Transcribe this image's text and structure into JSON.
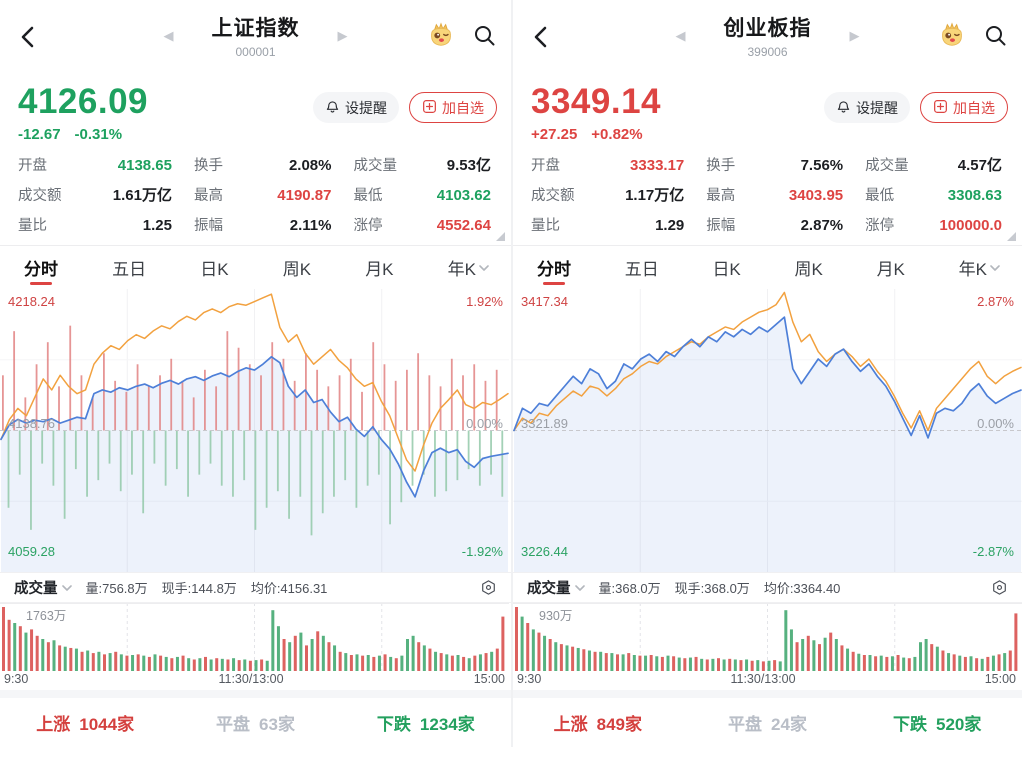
{
  "colors": {
    "red": "#dd4442",
    "green": "#1ea15f",
    "orange": "#f2a13f",
    "blue_line": "#4d7fd8",
    "blue_fill": "rgba(77,127,216,0.10)",
    "vol_red": "#d9514f",
    "vol_green": "#44a871",
    "accent_underline": "#dd4442"
  },
  "panels": [
    {
      "nav": {
        "title": "上证指数",
        "code": "000001"
      },
      "price": {
        "value": "4126.09",
        "change": "-12.67",
        "pct": "-0.31%",
        "cls": "c-green"
      },
      "actions": {
        "alert": "设提醒",
        "add": "加自选"
      },
      "stats": [
        {
          "label": "开盘",
          "value": "4138.65",
          "cls": "c-green"
        },
        {
          "label": "换手",
          "value": "2.08%",
          "cls": "c-dark"
        },
        {
          "label": "成交量",
          "value": "9.53亿",
          "cls": "c-dark"
        },
        {
          "label": "成交额",
          "value": "1.61万亿",
          "cls": "c-dark"
        },
        {
          "label": "最高",
          "value": "4190.87",
          "cls": "c-red"
        },
        {
          "label": "最低",
          "value": "4103.62",
          "cls": "c-green"
        },
        {
          "label": "量比",
          "value": "1.25",
          "cls": "c-dark"
        },
        {
          "label": "振幅",
          "value": "2.11%",
          "cls": "c-dark"
        },
        {
          "label": "涨停",
          "value": "4552.64",
          "cls": "c-red"
        }
      ],
      "tabs": [
        "分时",
        "五日",
        "日K",
        "周K",
        "月K",
        "年K"
      ],
      "chart_labels": {
        "top_left": "4218.24",
        "top_right": "1.92%",
        "mid_left": "4138.76",
        "mid_right": "0.00%",
        "bottom_left": "4059.28",
        "bottom_right": "-1.92%"
      },
      "vol_info": {
        "selector": "成交量",
        "items": [
          "量:756.8万",
          "现手:144.8万",
          "均价:4156.31"
        ]
      },
      "vol_max": "1763万",
      "axis": [
        "9:30",
        "11:30/13:00",
        "15:00"
      ],
      "footer": {
        "up_label": "上涨",
        "up": "1044家",
        "flat_label": "平盘",
        "flat": "63家",
        "down_label": "下跌",
        "down": "1234家"
      }
    },
    {
      "nav": {
        "title": "创业板指",
        "code": "399006"
      },
      "price": {
        "value": "3349.14",
        "change": "+27.25",
        "pct": "+0.82%",
        "cls": "c-red"
      },
      "actions": {
        "alert": "设提醒",
        "add": "加自选"
      },
      "stats": [
        {
          "label": "开盘",
          "value": "3333.17",
          "cls": "c-red"
        },
        {
          "label": "换手",
          "value": "7.56%",
          "cls": "c-dark"
        },
        {
          "label": "成交量",
          "value": "4.57亿",
          "cls": "c-dark"
        },
        {
          "label": "成交额",
          "value": "1.17万亿",
          "cls": "c-dark"
        },
        {
          "label": "最高",
          "value": "3403.95",
          "cls": "c-red"
        },
        {
          "label": "最低",
          "value": "3308.63",
          "cls": "c-green"
        },
        {
          "label": "量比",
          "value": "1.29",
          "cls": "c-dark"
        },
        {
          "label": "振幅",
          "value": "2.87%",
          "cls": "c-dark"
        },
        {
          "label": "涨停",
          "value": "100000.0",
          "cls": "c-red"
        }
      ],
      "tabs": [
        "分时",
        "五日",
        "日K",
        "周K",
        "月K",
        "年K"
      ],
      "chart_labels": {
        "top_left": "3417.34",
        "top_right": "2.87%",
        "mid_left": "3321.89",
        "mid_right": "0.00%",
        "bottom_left": "3226.44",
        "bottom_right": "-2.87%"
      },
      "vol_info": {
        "selector": "成交量",
        "items": [
          "量:368.0万",
          "现手:368.0万",
          "均价:3364.40"
        ]
      },
      "vol_max": "930万",
      "axis": [
        "9:30",
        "11:30/13:00",
        "15:00"
      ],
      "footer": {
        "up_label": "上涨",
        "up": "849家",
        "flat_label": "平盘",
        "flat": "24家",
        "down_label": "下跌",
        "down": "520家"
      }
    }
  ],
  "chart_data": [
    {
      "type": "line",
      "title": "上证指数 分时",
      "x_axis": [
        "9:30",
        "11:30/13:00",
        "15:00"
      ],
      "ylim_pct": [
        -1.92,
        1.92
      ],
      "mid_value": 4138.76,
      "series": [
        {
          "name": "price_pct",
          "color": "#4d7fd8",
          "values": [
            -0.12,
            0.08,
            0.15,
            0.1,
            0.14,
            0.12,
            0.16,
            0.1,
            0.14,
            0.18,
            0.16,
            0.5,
            0.55,
            0.52,
            0.58,
            0.55,
            0.6,
            0.63,
            0.58,
            0.64,
            0.68,
            0.63,
            0.7,
            0.73,
            0.68,
            0.74,
            0.78,
            0.73,
            0.8,
            0.85,
            0.82,
            0.9,
            1.0,
            0.92,
            0.6,
            0.45,
            0.55,
            0.38,
            0.42,
            0.25,
            0.12,
            0.18,
            0.02,
            -0.08,
            0.05,
            -0.12,
            -0.25,
            -0.45,
            -0.7,
            -0.9,
            -0.55,
            -0.3,
            -0.24,
            -0.3,
            -0.26,
            -0.42,
            -0.5,
            -0.38,
            -0.35,
            -0.33,
            -0.31
          ]
        },
        {
          "name": "average_pct",
          "color": "#f2a13f",
          "values": [
            -0.12,
            0.15,
            0.3,
            0.2,
            0.45,
            0.7,
            0.55,
            0.75,
            0.6,
            0.5,
            0.55,
            0.9,
            1.05,
            1.15,
            1.1,
            1.22,
            1.3,
            1.25,
            1.35,
            1.42,
            1.38,
            1.48,
            1.55,
            1.5,
            1.6,
            1.65,
            1.6,
            1.68,
            1.72,
            1.7,
            1.75,
            1.8,
            1.85,
            1.4,
            1.2,
            1.3,
            1.05,
            0.9,
            1.0,
            1.1,
            0.95,
            0.85,
            0.7,
            0.6,
            0.65,
            0.4,
            0.2,
            -0.1,
            -0.4,
            -0.55,
            -0.2,
            0.1,
            0.3,
            0.42,
            0.55,
            0.35,
            0.3,
            0.38,
            0.35,
            0.42,
            0.5
          ]
        }
      ],
      "minute_bars": [
        0.5,
        -0.7,
        0.9,
        -0.4,
        0.3,
        -0.9,
        0.6,
        -0.3,
        0.8,
        -0.5,
        0.4,
        -0.8,
        0.95,
        -0.35,
        0.5,
        -0.6,
        0.3,
        -0.45,
        0.7,
        -0.3,
        0.45,
        -0.55,
        0.35,
        -0.4,
        0.6,
        -0.75,
        0.4,
        -0.3,
        0.5,
        -0.5,
        0.65,
        -0.35,
        0.45,
        -0.6,
        0.3,
        -0.4,
        0.55,
        -0.3,
        0.4,
        -0.5,
        0.9,
        -0.6,
        0.75,
        -0.45,
        0.6,
        -0.9,
        0.5,
        -0.7,
        0.8,
        -0.55,
        0.65,
        -0.8,
        0.45,
        -0.6,
        0.7,
        -0.95,
        0.55,
        -0.75,
        0.4,
        -0.6,
        0.5,
        -0.45,
        0.65,
        -0.7,
        0.35,
        -0.5,
        0.8,
        -0.4,
        0.6,
        -0.85,
        0.45,
        -0.65,
        0.55,
        -0.5,
        0.7,
        -0.4,
        0.5,
        -0.6,
        0.4,
        -0.55,
        0.65,
        -0.45,
        0.5,
        -0.35,
        0.6,
        -0.5,
        0.45,
        -0.4,
        0.55,
        -0.6
      ],
      "volume": {
        "max_label": "1763万",
        "bars": [
          1.0,
          0.8,
          -0.75,
          0.7,
          -0.6,
          0.65,
          0.55,
          -0.5,
          0.45,
          -0.48,
          0.4,
          -0.38,
          0.36,
          -0.35,
          0.3,
          -0.32,
          0.28,
          -0.3,
          0.26,
          -0.28,
          0.3,
          -0.26,
          0.24,
          -0.25,
          0.26,
          -0.24,
          0.22,
          -0.26,
          0.24,
          -0.22,
          0.2,
          -0.22,
          0.24,
          -0.2,
          0.18,
          -0.2,
          0.22,
          -0.18,
          0.2,
          -0.19,
          0.18,
          -0.2,
          0.17,
          -0.18,
          0.16,
          -0.17,
          0.18,
          -0.16,
          -0.95,
          -0.7,
          0.5,
          -0.45,
          0.55,
          -0.6,
          0.4,
          -0.5,
          0.62,
          -0.55,
          0.45,
          -0.4,
          0.3,
          -0.28,
          0.25,
          -0.26,
          0.24,
          -0.25,
          0.22,
          -0.24,
          0.26,
          -0.22,
          0.2,
          -0.24,
          -0.5,
          -0.55,
          0.45,
          -0.4,
          0.35,
          -0.3,
          0.28,
          -0.26,
          0.24,
          -0.25,
          0.22,
          -0.2,
          0.24,
          -0.26,
          0.28,
          -0.3,
          0.35,
          0.85
        ]
      }
    },
    {
      "type": "line",
      "title": "创业板指 分时",
      "x_axis": [
        "9:30",
        "11:30/13:00",
        "15:00"
      ],
      "ylim_pct": [
        -2.87,
        2.87
      ],
      "mid_value": 3321.89,
      "series": [
        {
          "name": "price_pct",
          "color": "#4d7fd8",
          "values": [
            0.0,
            0.45,
            0.35,
            0.55,
            0.5,
            0.7,
            0.9,
            1.1,
            0.95,
            1.25,
            1.15,
            0.85,
            1.0,
            1.35,
            1.25,
            1.45,
            1.55,
            1.4,
            1.6,
            1.5,
            1.7,
            1.85,
            1.7,
            1.9,
            1.8,
            2.0,
            1.9,
            2.05,
            1.95,
            2.1,
            2.0,
            2.15,
            2.3,
            1.25,
            0.95,
            1.2,
            1.45,
            1.3,
            1.55,
            1.65,
            1.4,
            1.2,
            1.35,
            1.1,
            0.9,
            0.6,
            0.25,
            -0.1,
            0.3,
            -0.15,
            0.35,
            0.45,
            0.4,
            0.55,
            0.8,
            0.95,
            0.7,
            0.55,
            0.65,
            0.75,
            0.82
          ]
        },
        {
          "name": "average_pct",
          "color": "#f2a13f",
          "values": [
            0.0,
            0.25,
            0.15,
            0.35,
            0.3,
            0.5,
            0.65,
            0.8,
            0.7,
            0.9,
            0.85,
            0.7,
            0.85,
            1.05,
            1.15,
            1.3,
            1.4,
            1.35,
            1.5,
            1.6,
            1.7,
            1.8,
            1.75,
            1.9,
            2.0,
            2.1,
            2.05,
            2.2,
            2.3,
            2.4,
            2.45,
            2.55,
            2.8,
            2.2,
            1.8,
            1.95,
            1.6,
            1.4,
            1.55,
            1.65,
            1.5,
            1.3,
            1.45,
            1.2,
            1.0,
            0.7,
            0.35,
            0.05,
            0.4,
            0.0,
            0.45,
            0.65,
            0.85,
            1.05,
            1.25,
            1.4,
            1.1,
            0.95,
            1.1,
            1.2,
            1.28
          ]
        }
      ],
      "minute_bars": [],
      "volume": {
        "max_label": "930万",
        "bars": [
          1.0,
          -0.85,
          0.75,
          -0.65,
          0.6,
          -0.55,
          0.5,
          -0.45,
          0.42,
          -0.4,
          0.38,
          -0.36,
          0.34,
          -0.32,
          0.3,
          -0.3,
          0.28,
          -0.28,
          0.26,
          -0.26,
          0.28,
          -0.25,
          0.24,
          -0.24,
          0.25,
          -0.23,
          0.22,
          -0.24,
          0.23,
          -0.21,
          0.2,
          -0.21,
          0.22,
          -0.19,
          0.18,
          -0.19,
          0.2,
          -0.18,
          0.19,
          -0.18,
          0.17,
          -0.18,
          0.16,
          -0.17,
          0.15,
          -0.16,
          0.17,
          -0.15,
          -0.95,
          -0.65,
          0.45,
          -0.5,
          0.55,
          -0.48,
          0.42,
          -0.52,
          0.6,
          -0.5,
          0.4,
          -0.35,
          0.3,
          -0.27,
          0.25,
          -0.25,
          0.23,
          -0.24,
          0.22,
          -0.23,
          0.25,
          -0.21,
          0.2,
          -0.22,
          -0.45,
          -0.5,
          0.42,
          -0.38,
          0.32,
          -0.28,
          0.26,
          -0.24,
          0.22,
          -0.23,
          0.2,
          -0.19,
          0.22,
          -0.24,
          0.26,
          -0.28,
          0.32,
          0.9
        ]
      }
    }
  ]
}
